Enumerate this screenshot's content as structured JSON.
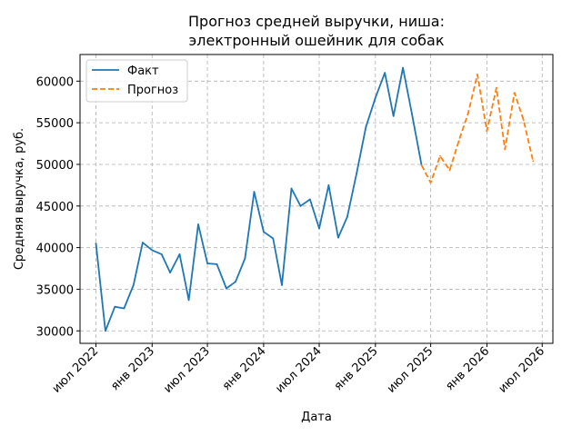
{
  "chart_data": {
    "type": "line",
    "title": [
      "Прогноз средней выручки, ниша:",
      "электронный ошейник для собак"
    ],
    "xlabel": "Дата",
    "ylabel": "Средняя выручка, руб.",
    "ylim": [
      28500,
      63200
    ],
    "xlim": [
      "2022-05-10",
      "2026-08-05"
    ],
    "grid": true,
    "grid_style": "dashed",
    "legend_position": "top-left",
    "x_ticks": [
      {
        "date": "2022-07-01",
        "label": "июл 2022"
      },
      {
        "date": "2023-01-01",
        "label": "янв 2023"
      },
      {
        "date": "2023-07-01",
        "label": "июл 2023"
      },
      {
        "date": "2024-01-01",
        "label": "янв 2024"
      },
      {
        "date": "2024-07-01",
        "label": "июл 2024"
      },
      {
        "date": "2025-01-01",
        "label": "янв 2025"
      },
      {
        "date": "2025-07-01",
        "label": "июл 2025"
      },
      {
        "date": "2026-01-01",
        "label": "янв 2026"
      },
      {
        "date": "2026-07-01",
        "label": "июл 2026"
      }
    ],
    "y_ticks": [
      30000,
      35000,
      40000,
      45000,
      50000,
      55000,
      60000
    ],
    "series": [
      {
        "name": "Факт",
        "color": "#1f77b4",
        "style": "solid",
        "points": [
          [
            "2022-07-01",
            40500
          ],
          [
            "2022-08-01",
            30000
          ],
          [
            "2022-09-01",
            32900
          ],
          [
            "2022-10-01",
            32700
          ],
          [
            "2022-11-01",
            35500
          ],
          [
            "2022-12-01",
            40600
          ],
          [
            "2023-01-01",
            39700
          ],
          [
            "2023-02-01",
            39200
          ],
          [
            "2023-03-01",
            37000
          ],
          [
            "2023-04-01",
            39200
          ],
          [
            "2023-05-01",
            33700
          ],
          [
            "2023-06-01",
            42800
          ],
          [
            "2023-07-01",
            38100
          ],
          [
            "2023-08-01",
            38000
          ],
          [
            "2023-09-01",
            35100
          ],
          [
            "2023-10-01",
            35900
          ],
          [
            "2023-11-01",
            38700
          ],
          [
            "2023-12-01",
            46700
          ],
          [
            "2024-01-01",
            41900
          ],
          [
            "2024-02-01",
            41100
          ],
          [
            "2024-03-01",
            35500
          ],
          [
            "2024-04-01",
            47100
          ],
          [
            "2024-05-01",
            45000
          ],
          [
            "2024-06-01",
            45800
          ],
          [
            "2024-07-01",
            42300
          ],
          [
            "2024-08-01",
            47500
          ],
          [
            "2024-09-01",
            41200
          ],
          [
            "2024-10-01",
            43700
          ],
          [
            "2024-11-01",
            49000
          ],
          [
            "2024-12-01",
            54500
          ],
          [
            "2025-01-01",
            58000
          ],
          [
            "2025-02-01",
            61000
          ],
          [
            "2025-03-01",
            55800
          ],
          [
            "2025-04-01",
            61600
          ],
          [
            "2025-05-01",
            56000
          ],
          [
            "2025-06-01",
            49900
          ]
        ]
      },
      {
        "name": "Прогноз",
        "color": "#ff7f0e",
        "style": "dashed",
        "points": [
          [
            "2025-06-01",
            49900
          ],
          [
            "2025-07-01",
            47800
          ],
          [
            "2025-08-01",
            51000
          ],
          [
            "2025-09-01",
            49300
          ],
          [
            "2025-10-01",
            52800
          ],
          [
            "2025-11-01",
            56200
          ],
          [
            "2025-12-01",
            60800
          ],
          [
            "2026-01-01",
            54000
          ],
          [
            "2026-02-01",
            59200
          ],
          [
            "2026-03-01",
            51800
          ],
          [
            "2026-04-01",
            58600
          ],
          [
            "2026-05-01",
            55300
          ],
          [
            "2026-06-01",
            50400
          ]
        ]
      }
    ]
  }
}
